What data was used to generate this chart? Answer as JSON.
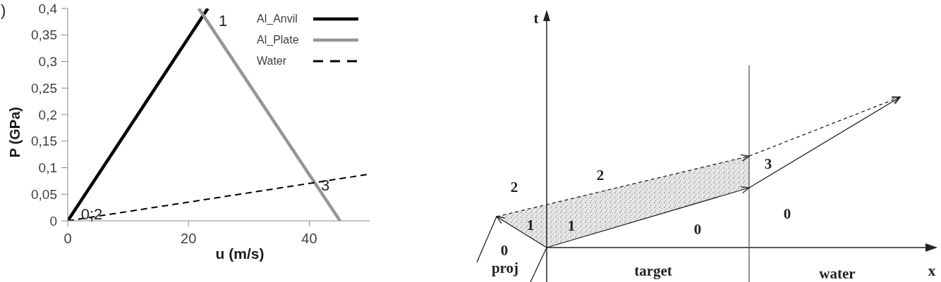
{
  "chart_data": [
    {
      "type": "line",
      "xlabel": "u (m/s)",
      "ylabel": "P (GPa)",
      "annotations": [
        ")",
        "1",
        "3",
        "0;2"
      ],
      "series": [
        {
          "name": "Al_Anvil",
          "color": "#000000",
          "x": [
            0,
            23.2
          ],
          "values": [
            0,
            0.4
          ]
        },
        {
          "name": "Al_Plate",
          "color": "#969696",
          "x": [
            21.7,
            45.1
          ],
          "values": [
            0.4,
            0
          ]
        },
        {
          "name": "Water",
          "color": "#000000",
          "line_style": "dashed",
          "x": [
            0,
            50
          ],
          "values": [
            0,
            0.088
          ]
        }
      ],
      "xlim": [
        0,
        50
      ],
      "xticks": [
        0,
        20,
        40
      ],
      "ylim": [
        0,
        0.4
      ],
      "yticks": [
        0,
        {
          "value": 0.05,
          "label": "0,05"
        },
        {
          "value": 0.1,
          "label": "0,1"
        },
        {
          "value": 0.15,
          "label": "0,15"
        },
        {
          "value": 0.2,
          "label": "0,2"
        },
        {
          "value": 0.25,
          "label": "0,25"
        },
        {
          "value": 0.3,
          "label": "0,3"
        },
        {
          "value": 0.35,
          "label": "0,35"
        },
        {
          "value": 0.4,
          "label": "0,4"
        }
      ],
      "legend": "top right",
      "grid": false,
      "line_style": "solid"
    },
    {
      "type": "other",
      "annotations": [
        "t",
        "2",
        "2",
        "3",
        "1",
        "1",
        "0",
        "0",
        "0",
        "proj",
        "target",
        "water",
        "x"
      ]
    }
  ]
}
